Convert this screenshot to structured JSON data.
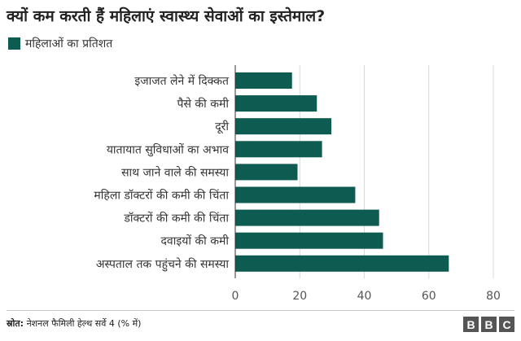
{
  "header": {
    "title": "क्यों कम करती हैं महिलाएं स्वास्थ्य सेवाओं का इस्तेमाल?"
  },
  "legend": {
    "label": "महिलाओं का प्रतिशत"
  },
  "colors": {
    "bar": "#0e5b52",
    "grid": "#d9d9d9",
    "axis": "#333333"
  },
  "chart_data": {
    "type": "bar",
    "orientation": "horizontal",
    "title": "क्यों कम करती हैं महिलाएं स्वास्थ्य सेवाओं का इस्तेमाल?",
    "categories": [
      "इजाजत लेने में दिक्कत",
      "पैसे की कमी",
      "दूरी",
      "यातायात सुविधाओं का अभाव",
      "साथ जाने वाले की समस्या",
      "महिला डॉक्टरों की कमी की चिंता",
      "डॉक्टरों की कमी की चिंता",
      "दवाइयों की कमी",
      "अस्पताल तक पहुंचने की समस्या"
    ],
    "series": [
      {
        "name": "महिलाओं का प्रतिशत",
        "values": [
          17.6,
          25.3,
          29.8,
          26.9,
          19.3,
          37.2,
          44.6,
          45.8,
          66.2
        ]
      }
    ],
    "xlim": [
      0,
      80
    ],
    "xticks": [
      0,
      20,
      40,
      60,
      80
    ],
    "xlabel": "",
    "ylabel": "",
    "grid": true,
    "legend_position": "top-left"
  },
  "footer": {
    "source_label": "स्रोत:",
    "source_text": "नेशनल फैमिली हेल्थ सर्वे 4 (% में)",
    "brand_letters": [
      "B",
      "B",
      "C"
    ]
  }
}
